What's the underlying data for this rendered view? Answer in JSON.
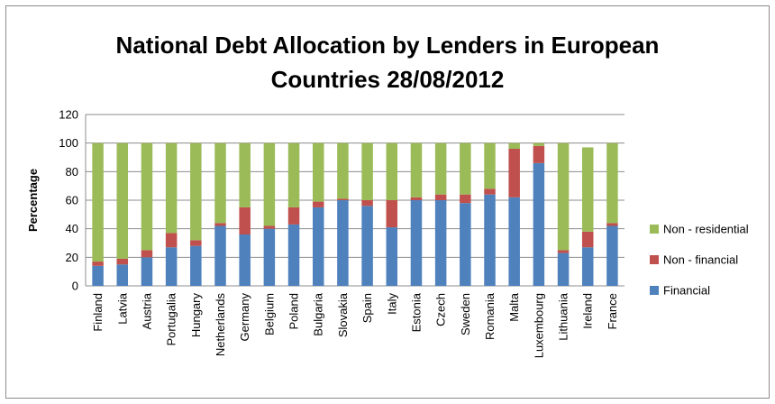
{
  "chart_data": {
    "type": "bar",
    "stacked": true,
    "title_lines": [
      "National Debt Allocation by Lenders in European",
      "Countries 28/08/2012"
    ],
    "xlabel": "",
    "ylabel": "Percentage",
    "ylim": [
      0,
      120
    ],
    "yticks": [
      0,
      20,
      40,
      60,
      80,
      100,
      120
    ],
    "grid": true,
    "legend_position": "right",
    "categories": [
      "Finland",
      "Latvia",
      "Austria",
      "Portugalia",
      "Hungary",
      "Netherlands",
      "Germany",
      "Belgium",
      "Poland",
      "Bulgaria",
      "Slovakia",
      "Spain",
      "Italy",
      "Estonia",
      "Czech",
      "Sweden",
      "Romania",
      "Malta",
      "Luxembourg",
      "Lithuania",
      "Ireland",
      "France"
    ],
    "series": [
      {
        "name": "Financial",
        "color": "#4f81bd",
        "values": [
          14,
          15,
          20,
          27,
          28,
          42,
          36,
          40,
          43,
          55,
          60,
          56,
          41,
          60,
          60,
          58,
          64,
          62,
          86,
          23,
          27,
          42
        ]
      },
      {
        "name": "Non - financial",
        "color": "#c0504d",
        "values": [
          3,
          4,
          5,
          10,
          4,
          2,
          19,
          2,
          12,
          4,
          1,
          4,
          19,
          2,
          4,
          6,
          4,
          34,
          12,
          2,
          11,
          2
        ]
      },
      {
        "name": "Non - residential",
        "color": "#9bbb59",
        "values": [
          83,
          81,
          75,
          63,
          68,
          56,
          45,
          58,
          45,
          41,
          39,
          40,
          40,
          38,
          36,
          36,
          32,
          4,
          2,
          75,
          59,
          56
        ]
      }
    ],
    "legend_order": [
      "Non - residential",
      "Non - financial",
      "Financial"
    ]
  }
}
